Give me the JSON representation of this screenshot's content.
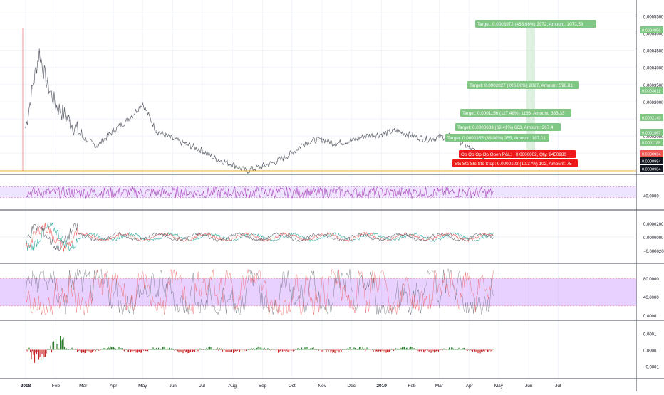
{
  "chart_data": [
    {
      "type": "line",
      "panel": "price",
      "x_ticks": [
        "2018",
        "Feb",
        "Mar",
        "Apr",
        "May",
        "Jun",
        "Jul",
        "Aug",
        "Sep",
        "Oct",
        "Nov",
        "Dec",
        "2019",
        "Feb",
        "Mar",
        "Apr",
        "May",
        "Jun",
        "Jul"
      ],
      "y_ticks": [
        "0.0005500",
        "0.0005000",
        "0.0004500",
        "0.0004000",
        "0.0003500",
        "0.0003000",
        "0.0002500",
        "0.0002000",
        "0.0001500",
        "0.0001000"
      ],
      "ylim": [
        9.84e-05,
        0.00058
      ],
      "x": [
        "2018-01-01",
        "2018-01-08",
        "2018-01-15",
        "2018-01-22",
        "2018-02-01",
        "2018-02-15",
        "2018-03-01",
        "2018-03-15",
        "2018-04-01",
        "2018-04-15",
        "2018-05-01",
        "2018-05-15",
        "2018-06-01",
        "2018-06-15",
        "2018-07-01",
        "2018-07-15",
        "2018-08-01",
        "2018-08-15",
        "2018-09-01",
        "2018-09-15",
        "2018-10-01",
        "2018-10-15",
        "2018-11-01",
        "2018-11-15",
        "2018-12-01",
        "2018-12-15",
        "2019-01-01",
        "2019-01-15",
        "2019-02-01",
        "2019-02-15",
        "2019-03-01",
        "2019-03-15",
        "2019-04-01",
        "2019-04-15",
        "2019-04-26"
      ],
      "values": [
        0.000225,
        0.00034,
        0.000445,
        0.00036,
        0.00029,
        0.000245,
        0.000195,
        0.00017,
        0.000215,
        0.000245,
        0.000295,
        0.000215,
        0.00019,
        0.000175,
        0.000158,
        0.000133,
        0.000118,
        9.8e-05,
        0.000112,
        0.000125,
        0.00015,
        0.000182,
        0.00019,
        0.000178,
        0.000186,
        0.0002,
        0.000205,
        0.000215,
        0.000202,
        0.00019,
        0.000196,
        0.0002,
        0.000165,
        0.00014,
        0.000125
      ],
      "badges": [
        {
          "label": "0.0004956",
          "color": "#81c784"
        },
        {
          "label": "0.0003011",
          "color": "#81c784"
        },
        {
          "label": "0.0002140",
          "color": "#81c784"
        },
        {
          "label": "0.0001667",
          "color": "#81c784"
        },
        {
          "label": "0.0001139",
          "color": "#81c784"
        },
        {
          "label": "0.0000984",
          "color": "#ef5350"
        },
        {
          "label": "0.0000984",
          "color": "#131722"
        },
        {
          "label": "0.0000984",
          "color": "#131722"
        }
      ],
      "annotations": [
        {
          "text": "Target: 0.0003972 (483.66%) 3972, Amount: 1073.53",
          "color": "#81c784"
        },
        {
          "text": "Target: 0.0002027 (206.00%) 2027, Amount: 596.81",
          "color": "#81c784"
        },
        {
          "text": "Target: 0.0001156 (117.48%) 1156, Amount: 383.33",
          "color": "#81c784"
        },
        {
          "text": "Target: 0.0000683 (69.41%) 683, Amount: 267.4",
          "color": "#81c784"
        },
        {
          "text": "Target: 0.0000355 (36.08%) 355, Amount: 187.01",
          "color": "#81c784"
        },
        {
          "text": "Op Op Op Op Open P&L: −0.0000002, Qty: 2450980",
          "color": "#f01919"
        },
        {
          "text": "Stc Stc Stc Stc Stop: 0.0000102 (10.37%) 102, Amount: 75",
          "color": "#f01919"
        }
      ],
      "series_color": "#5d606b",
      "entry_line_color": "#ff9800"
    },
    {
      "type": "line",
      "panel": "rsi",
      "y_ticks": [
        "40.0000"
      ],
      "ylim": [
        0,
        100
      ],
      "band": [
        33,
        70
      ],
      "band_color": "#d1b3ff",
      "series_color": "#ab47bc"
    },
    {
      "type": "line",
      "panel": "oscillator",
      "y_ticks": [
        "0.0000200",
        "0.0000000",
        "−0.0000200"
      ],
      "ylim": [
        -3.5e-05,
        3.5e-05
      ],
      "series_colors": [
        "#26a69a",
        "#ef5350",
        "#5d606b"
      ]
    },
    {
      "type": "line",
      "panel": "stochastic",
      "y_ticks": [
        "80.0000",
        "40.0000",
        "0.0000"
      ],
      "ylim": [
        -5,
        105
      ],
      "band": [
        20,
        80
      ],
      "band_color": "#cc99ff",
      "series_colors": [
        "#5d606b",
        "#ef5350"
      ]
    },
    {
      "type": "bar",
      "panel": "histogram",
      "y_ticks": [
        "0.0001",
        "0.0000",
        "−0.0001"
      ],
      "ylim": [
        -0.00016,
        0.00016
      ],
      "positive_color": "#2e7d32",
      "negative_color": "#c62828"
    }
  ]
}
